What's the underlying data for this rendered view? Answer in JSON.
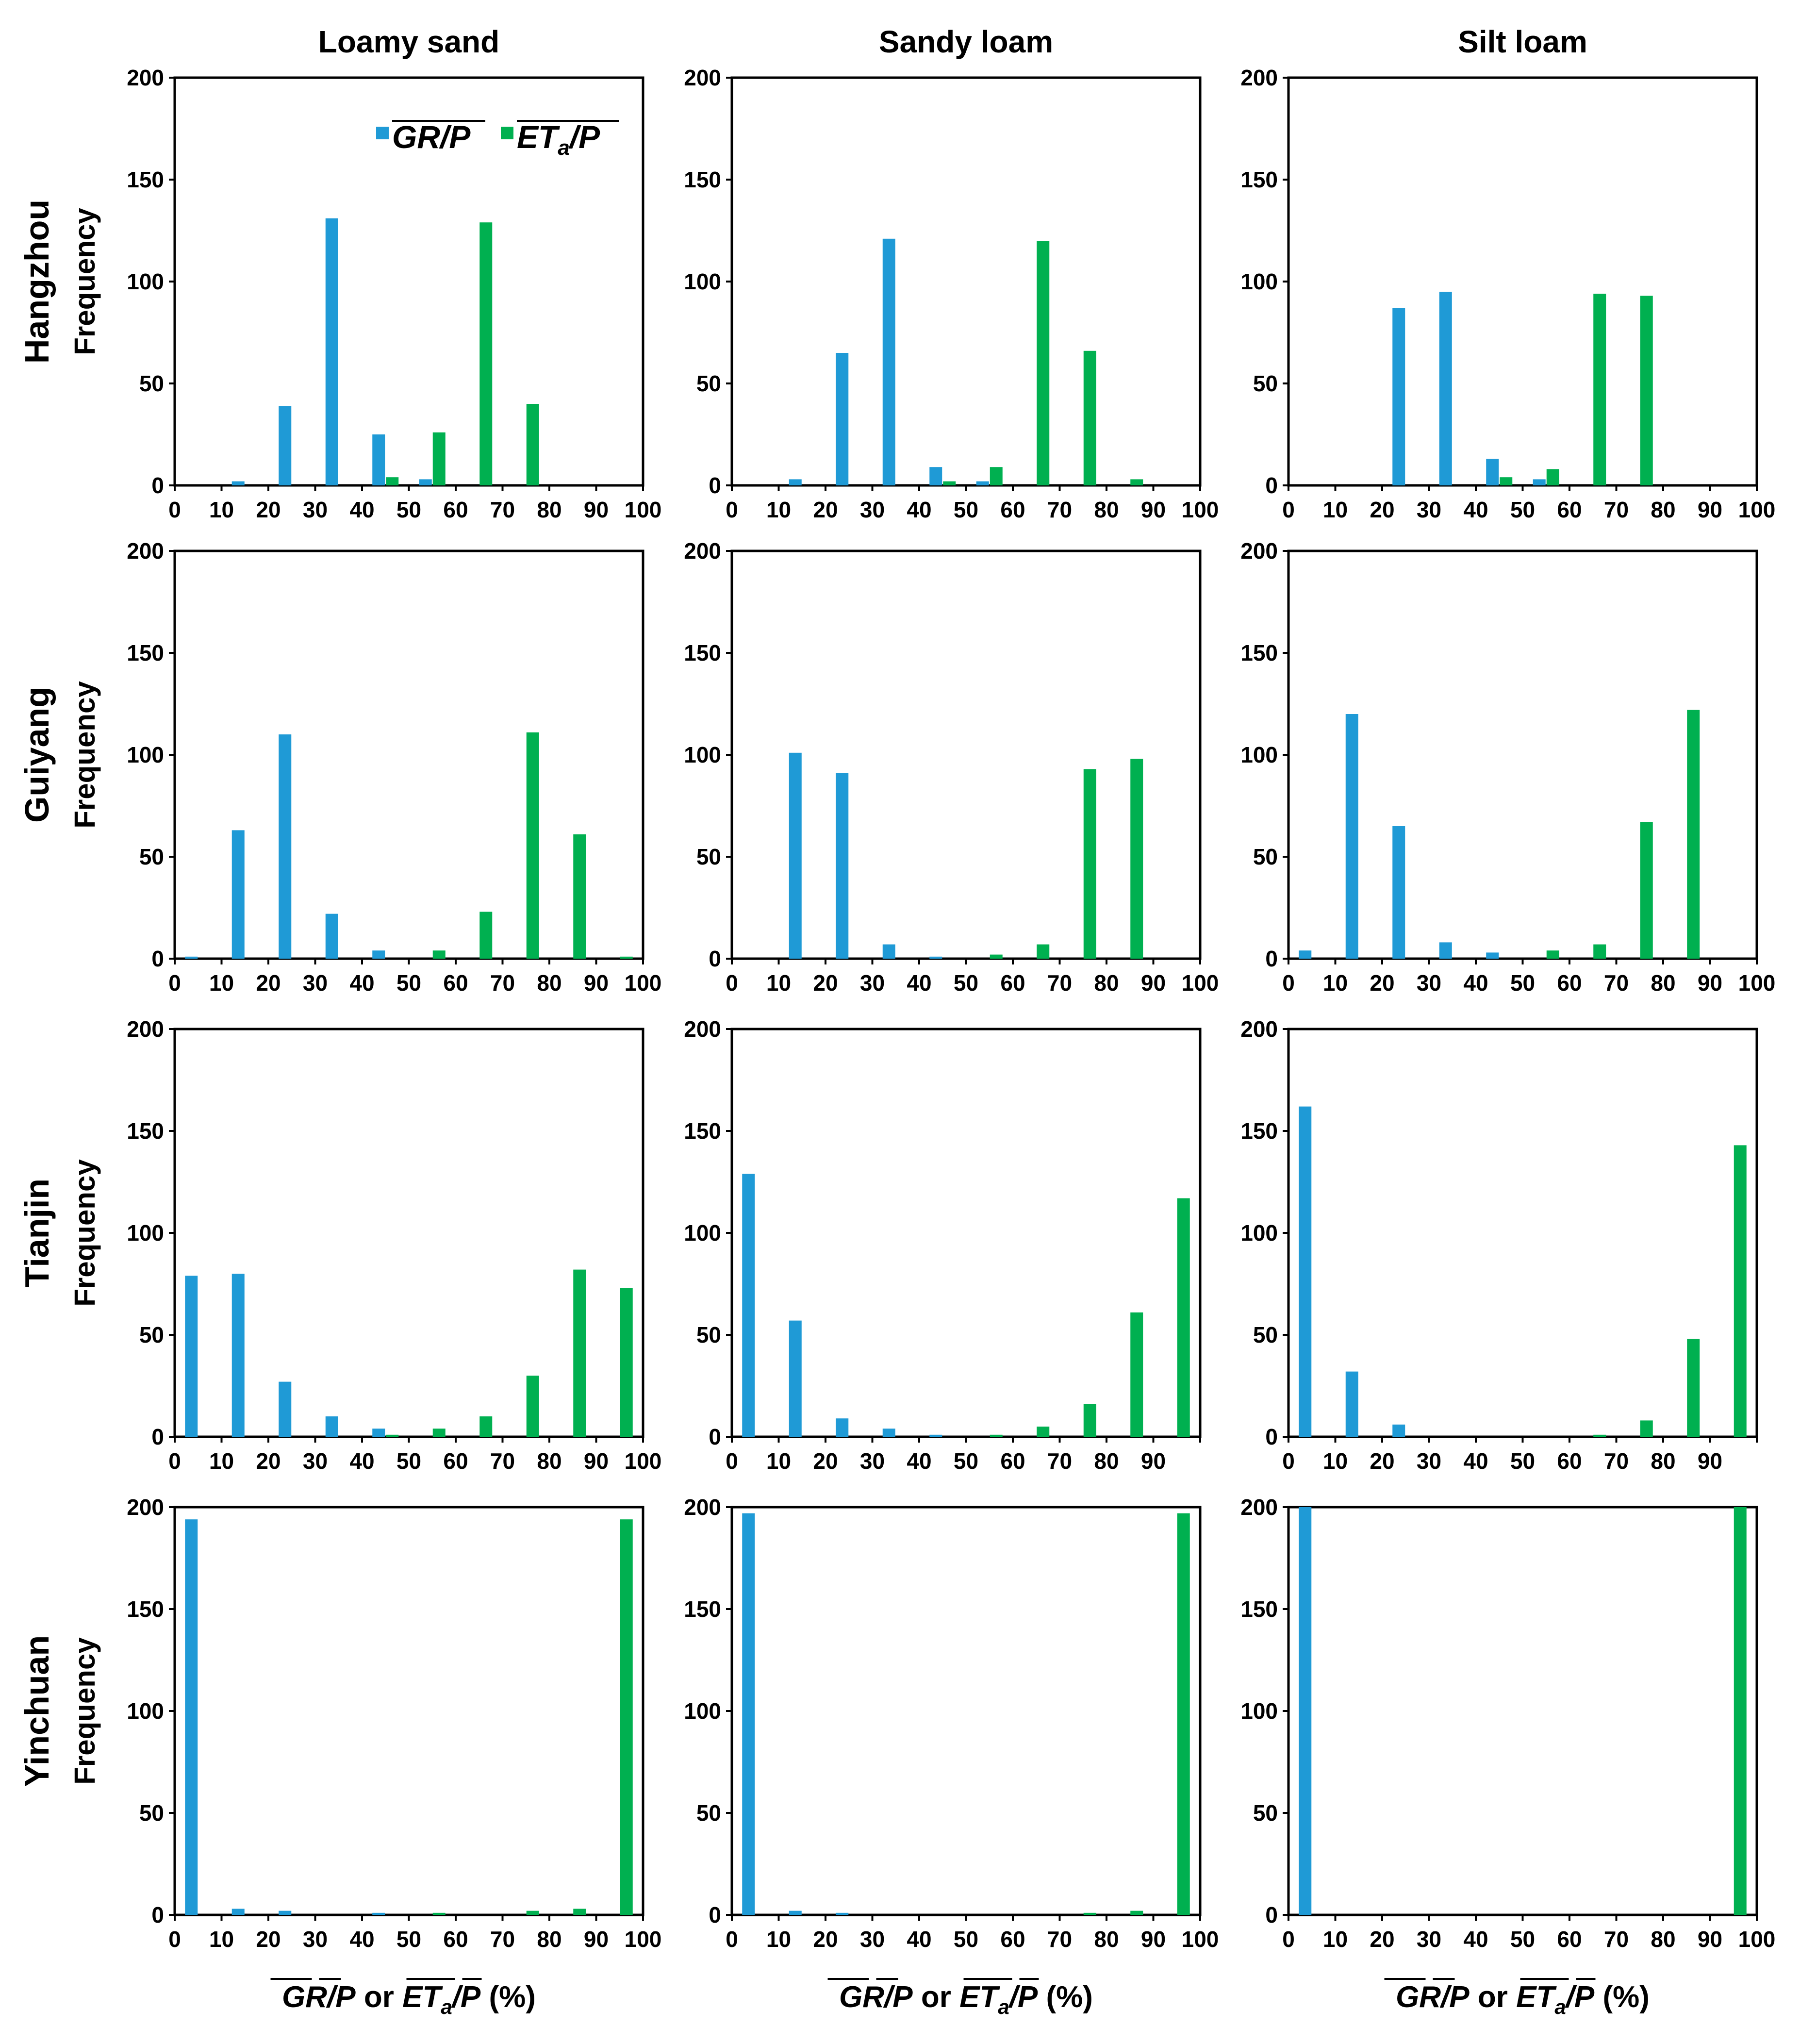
{
  "chart_data": {
    "type": "bar",
    "columns": [
      "Loamy sand",
      "Sandy loam",
      "Silt loam"
    ],
    "rows": [
      "Hangzhou",
      "Guiyang",
      "Tianjin",
      "Yinchuan"
    ],
    "ylabel": "Frequency",
    "xlabel": {
      "gr": "GR",
      "p": "P",
      "sep": "/",
      "or": "or",
      "et": "ET",
      "sub": "a",
      "unit": "(%)"
    },
    "ylim": [
      0,
      200
    ],
    "y_ticks": [
      "0",
      "50",
      "100",
      "150",
      "200"
    ],
    "x_ticks": [
      "0",
      "10",
      "20",
      "30",
      "40",
      "50",
      "60",
      "70",
      "80",
      "90",
      "100"
    ],
    "bin_centers": [
      5,
      15,
      25,
      35,
      45,
      55,
      65,
      75,
      85,
      95
    ],
    "legend": {
      "position": "top-right of first panel",
      "gr": {
        "label_main": "GR",
        "label_den": "P",
        "color": "#1f9ad6"
      },
      "et": {
        "label_main": "ET",
        "label_sub": "a",
        "label_den": "P",
        "color": "#00b050"
      }
    },
    "colors": {
      "gr": "#1f9ad6",
      "et": "#00b050"
    },
    "panels": [
      {
        "row": "Hangzhou",
        "col": "Loamy sand",
        "hide_100": false,
        "gr": [
          0,
          2,
          39,
          131,
          25,
          3,
          0,
          0,
          0,
          0
        ],
        "et": [
          0,
          0,
          0,
          0,
          4,
          26,
          129,
          40,
          0,
          0
        ]
      },
      {
        "row": "Hangzhou",
        "col": "Sandy loam",
        "hide_100": false,
        "gr": [
          0,
          3,
          65,
          121,
          9,
          2,
          0,
          0,
          0,
          0
        ],
        "et": [
          0,
          0,
          0,
          0,
          2,
          9,
          120,
          66,
          3,
          0
        ]
      },
      {
        "row": "Hangzhou",
        "col": "Silt loam",
        "hide_100": false,
        "gr": [
          0,
          0,
          87,
          95,
          13,
          3,
          0,
          0,
          0,
          0
        ],
        "et": [
          0,
          0,
          0,
          0,
          4,
          8,
          94,
          93,
          0,
          0
        ]
      },
      {
        "row": "Guiyang",
        "col": "Loamy sand",
        "hide_100": false,
        "gr": [
          1,
          63,
          110,
          22,
          4,
          0,
          0,
          0,
          0,
          0
        ],
        "et": [
          0,
          0,
          0,
          0,
          0,
          4,
          23,
          111,
          61,
          1
        ]
      },
      {
        "row": "Guiyang",
        "col": "Sandy loam",
        "hide_100": false,
        "gr": [
          0,
          101,
          91,
          7,
          1,
          0,
          0,
          0,
          0,
          0
        ],
        "et": [
          0,
          0,
          0,
          0,
          0,
          2,
          7,
          93,
          98,
          0
        ]
      },
      {
        "row": "Guiyang",
        "col": "Silt loam",
        "hide_100": false,
        "gr": [
          4,
          120,
          65,
          8,
          3,
          0,
          0,
          0,
          0,
          0
        ],
        "et": [
          0,
          0,
          0,
          0,
          0,
          4,
          7,
          67,
          122,
          0
        ]
      },
      {
        "row": "Tianjin",
        "col": "Loamy sand",
        "hide_100": false,
        "gr": [
          79,
          80,
          27,
          10,
          4,
          0,
          0,
          0,
          0,
          0
        ],
        "et": [
          0,
          0,
          0,
          0,
          1,
          4,
          10,
          30,
          82,
          73
        ]
      },
      {
        "row": "Tianjin",
        "col": "Sandy loam",
        "hide_100": true,
        "gr": [
          129,
          57,
          9,
          4,
          1,
          0,
          0,
          0,
          0,
          0
        ],
        "et": [
          0,
          0,
          0,
          0,
          0,
          1,
          5,
          16,
          61,
          117
        ]
      },
      {
        "row": "Tianjin",
        "col": "Silt loam",
        "hide_100": true,
        "gr": [
          162,
          32,
          6,
          0,
          0,
          0,
          0,
          0,
          0,
          0
        ],
        "et": [
          0,
          0,
          0,
          0,
          0,
          0,
          1,
          8,
          48,
          143
        ]
      },
      {
        "row": "Yinchuan",
        "col": "Loamy sand",
        "hide_100": false,
        "gr": [
          194,
          3,
          2,
          0,
          1,
          0,
          0,
          0,
          0,
          0
        ],
        "et": [
          0,
          0,
          0,
          0,
          0,
          1,
          0,
          2,
          3,
          194
        ]
      },
      {
        "row": "Yinchuan",
        "col": "Sandy loam",
        "hide_100": false,
        "gr": [
          197,
          2,
          1,
          0,
          0,
          0,
          0,
          0,
          0,
          0
        ],
        "et": [
          0,
          0,
          0,
          0,
          0,
          0,
          0,
          1,
          2,
          197
        ]
      },
      {
        "row": "Yinchuan",
        "col": "Silt loam",
        "hide_100": false,
        "gr": [
          200,
          0,
          0,
          0,
          0,
          0,
          0,
          0,
          0,
          0
        ],
        "et": [
          0,
          0,
          0,
          0,
          0,
          0,
          0,
          0,
          0,
          200
        ]
      }
    ]
  }
}
